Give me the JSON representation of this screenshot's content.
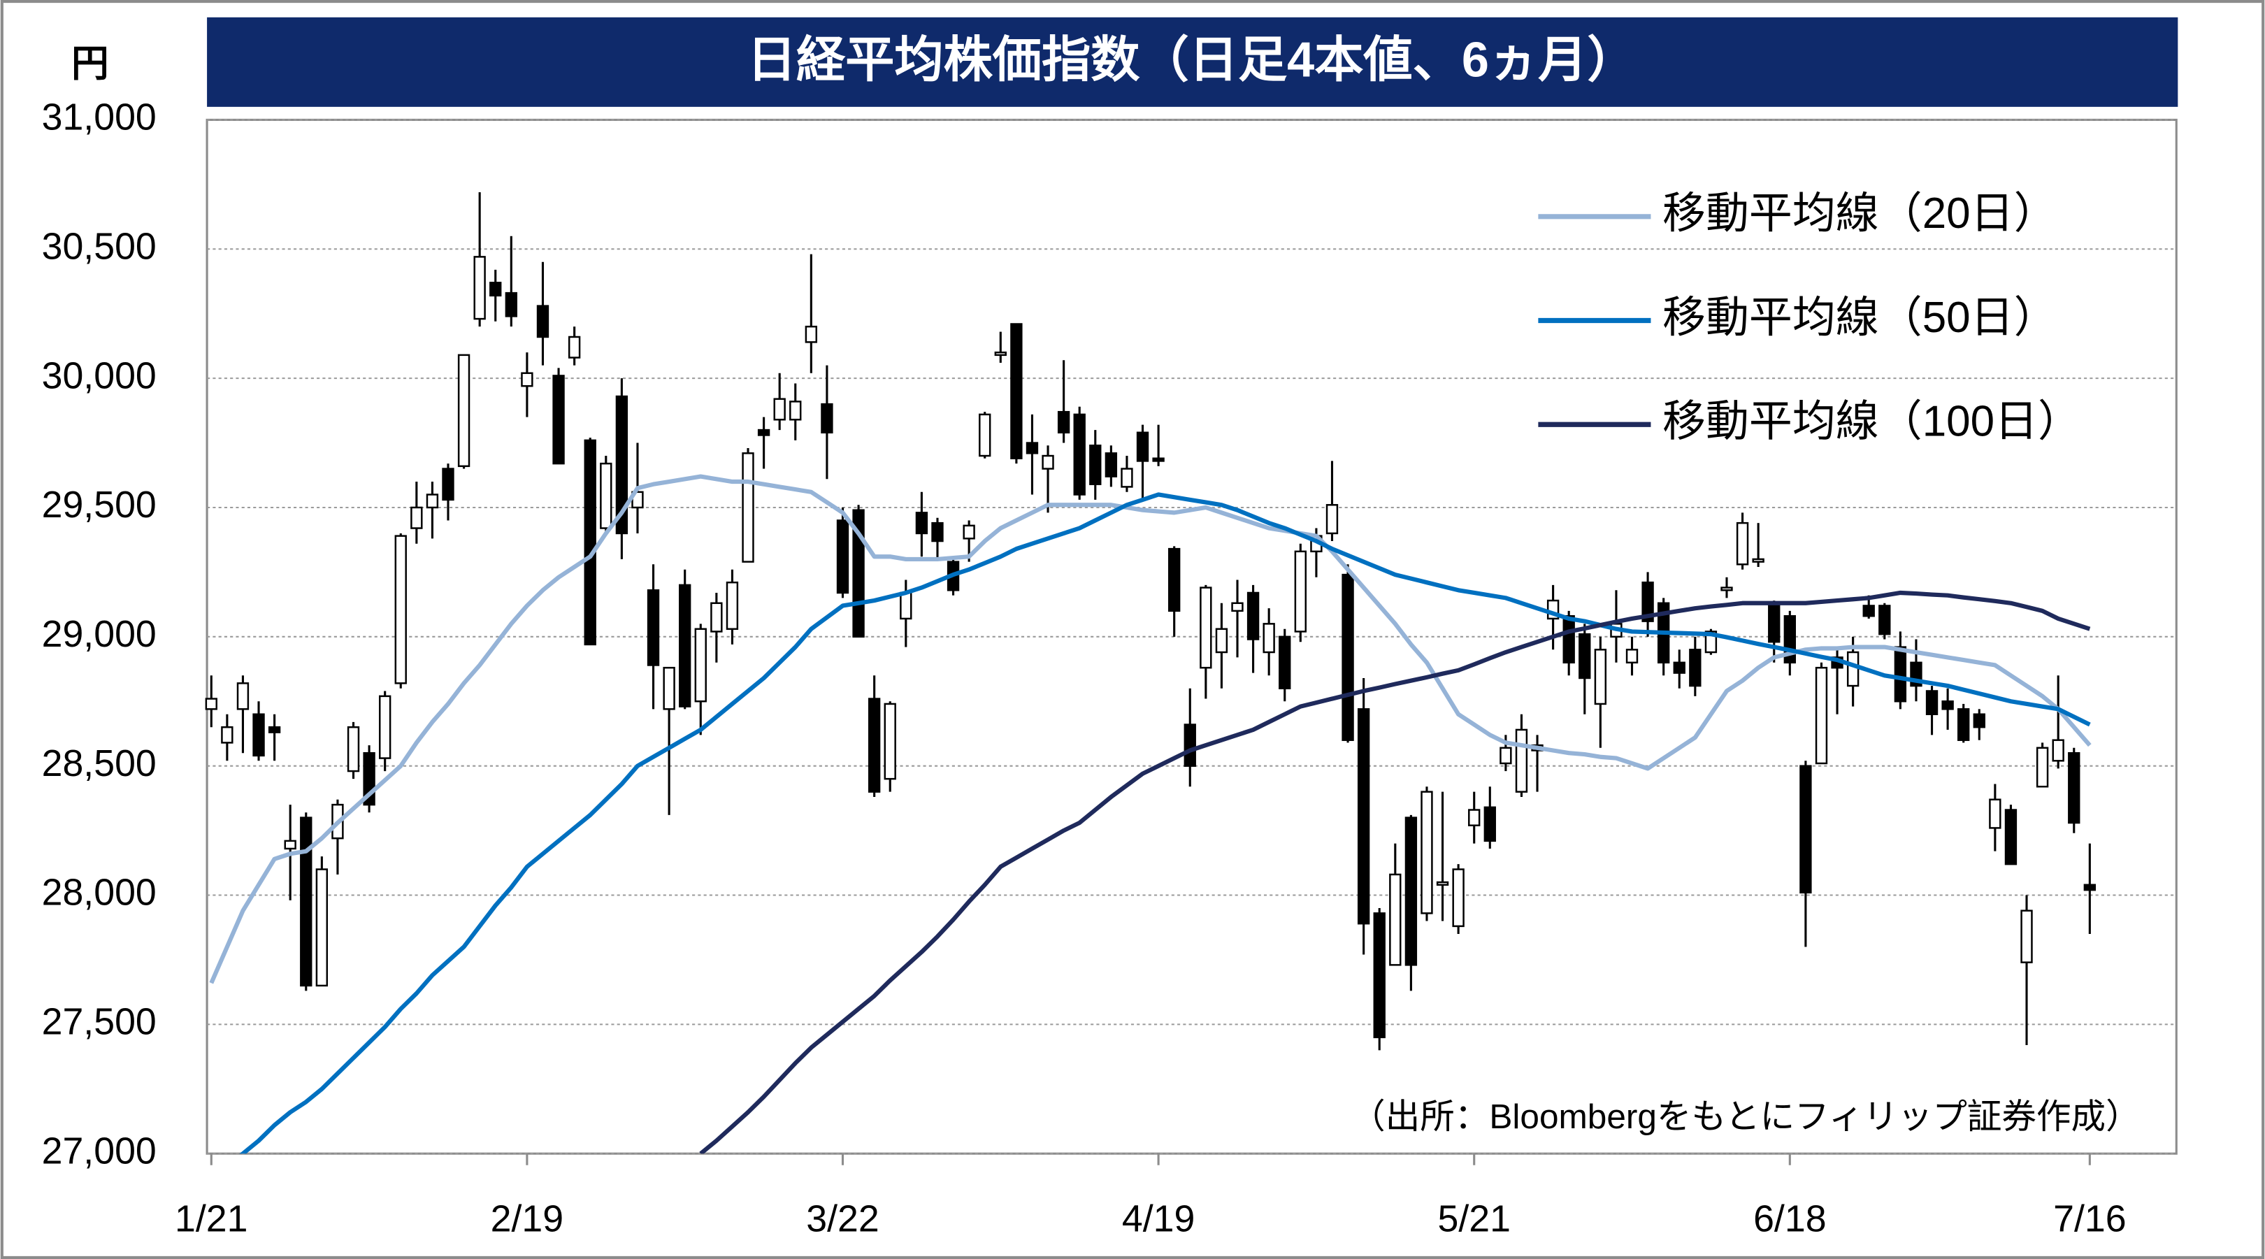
{
  "chart_data": {
    "type": "candlestick",
    "title": "日経平均株価指数（日足4本値、6ヵ月）",
    "y_unit": "円",
    "source": "（出所：Bloombergをもとにフィリップ証券作成）",
    "categories": [
      "1/21",
      null,
      null,
      null,
      null,
      null,
      null,
      null,
      null,
      null,
      null,
      null,
      null,
      null,
      null,
      null,
      null,
      null,
      null,
      null,
      "2/19",
      null,
      null,
      null,
      null,
      null,
      null,
      null,
      null,
      null,
      null,
      null,
      null,
      null,
      null,
      null,
      null,
      null,
      null,
      null,
      "3/22",
      null,
      null,
      null,
      null,
      null,
      null,
      null,
      null,
      null,
      null,
      null,
      null,
      null,
      null,
      null,
      null,
      null,
      null,
      null,
      "4/19",
      null,
      null,
      null,
      null,
      null,
      null,
      null,
      null,
      null,
      null,
      null,
      null,
      null,
      null,
      null,
      null,
      null,
      null,
      null,
      "5/21",
      null,
      null,
      null,
      null,
      null,
      null,
      null,
      null,
      null,
      null,
      null,
      null,
      null,
      null,
      null,
      null,
      null,
      null,
      null,
      "6/18",
      null,
      null,
      null,
      null,
      null,
      null,
      null,
      null,
      null,
      null,
      null,
      null,
      null,
      null,
      null,
      null,
      null,
      null,
      "7/16"
    ],
    "open": [
      28720,
      28590,
      28720,
      28700,
      28650,
      28180,
      28300,
      27650,
      28220,
      28480,
      28550,
      28530,
      28820,
      29420,
      29500,
      29650,
      29660,
      30230,
      30370,
      30330,
      29970,
      30280,
      30010,
      30080,
      29760,
      29420,
      29930,
      29500,
      29180,
      28720,
      29200,
      28750,
      29020,
      29030,
      29290,
      29800,
      29840,
      29840,
      30140,
      29900,
      29450,
      29490,
      28760,
      28450,
      29070,
      29480,
      29440,
      29290,
      29380,
      29700,
      30090,
      30210,
      29750,
      29650,
      29870,
      29860,
      29740,
      29710,
      29580,
      29790,
      29690,
      29340,
      28660,
      28880,
      28940,
      29100,
      29170,
      28940,
      29000,
      29020,
      29330,
      29400,
      29240,
      28720,
      27930,
      27730,
      28300,
      27930,
      28040,
      27880,
      28270,
      28340,
      28510,
      28400,
      28560,
      29070,
      29080,
      29010,
      28740,
      29000,
      28900,
      29210,
      29130,
      28900,
      28950,
      28940,
      29180,
      29280,
      29290,
      29120,
      29080,
      28500,
      28510,
      28920,
      28810,
      29120,
      29120,
      28960,
      28900,
      28790,
      28750,
      28720,
      28700,
      28260,
      28330,
      27740,
      28420,
      28520,
      28550,
      28040
    ],
    "high": [
      28850,
      28700,
      28850,
      28750,
      28700,
      28350,
      28320,
      28150,
      28370,
      28670,
      28580,
      28790,
      29400,
      29600,
      29600,
      29670,
      30090,
      30720,
      30420,
      30550,
      30100,
      30450,
      30040,
      30200,
      29770,
      29700,
      30000,
      29750,
      29280,
      28880,
      29260,
      29050,
      29170,
      29260,
      29730,
      29850,
      30020,
      29980,
      30480,
      30050,
      29500,
      29510,
      28850,
      28750,
      29220,
      29560,
      29460,
      29310,
      29450,
      29870,
      30180,
      30210,
      29860,
      29740,
      30070,
      29890,
      29800,
      29740,
      29700,
      29820,
      29820,
      29350,
      28800,
      29200,
      29130,
      29220,
      29200,
      29110,
      29030,
      29360,
      29420,
      29680,
      29280,
      28840,
      27950,
      28200,
      28310,
      28420,
      28400,
      28120,
      28400,
      28420,
      28620,
      28700,
      28620,
      29200,
      29100,
      29050,
      29000,
      29180,
      29000,
      29250,
      29150,
      28950,
      29000,
      29030,
      29230,
      29480,
      29440,
      29140,
      29100,
      28520,
      28900,
      28950,
      29000,
      29160,
      29130,
      29020,
      28990,
      28810,
      28800,
      28740,
      28720,
      28430,
      28350,
      28000,
      28590,
      28850,
      28570,
      28200
    ],
    "low": [
      28650,
      28520,
      28550,
      28520,
      28520,
      27980,
      27630,
      27650,
      28080,
      28450,
      28320,
      28480,
      28800,
      29360,
      29380,
      29450,
      29650,
      30200,
      30220,
      30200,
      29850,
      30050,
      29670,
      30050,
      28970,
      29400,
      29300,
      29400,
      28720,
      28310,
      28720,
      28620,
      28900,
      28970,
      29290,
      29650,
      29800,
      29760,
      30020,
      29610,
      29150,
      29000,
      28380,
      28400,
      28960,
      29310,
      29300,
      29160,
      29290,
      29690,
      30060,
      29670,
      29550,
      29480,
      29750,
      29530,
      29530,
      29580,
      29560,
      29530,
      29660,
      29000,
      28420,
      28760,
      28800,
      28920,
      28860,
      28850,
      28750,
      28980,
      29230,
      29370,
      28590,
      27770,
      27400,
      27730,
      27630,
      27900,
      27900,
      27850,
      28200,
      28180,
      28480,
      28380,
      28400,
      28950,
      28850,
      28700,
      28570,
      28900,
      28850,
      29000,
      28850,
      28800,
      28770,
      28930,
      29150,
      29260,
      29270,
      28900,
      28850,
      27800,
      28510,
      28700,
      28730,
      29070,
      28990,
      28720,
      28750,
      28620,
      28640,
      28590,
      28600,
      28170,
      28120,
      27420,
      28420,
      28490,
      28240,
      27850
    ],
    "close": [
      28760,
      28650,
      28820,
      28540,
      28630,
      28210,
      27650,
      28100,
      28350,
      28650,
      28350,
      28770,
      29390,
      29500,
      29550,
      29530,
      30090,
      30470,
      30320,
      30240,
      30020,
      30160,
      29670,
      30160,
      28970,
      29670,
      29400,
      29560,
      28890,
      28880,
      28730,
      29030,
      29130,
      29210,
      29710,
      29780,
      29920,
      29910,
      30200,
      29790,
      29170,
      29000,
      28400,
      28740,
      29170,
      29400,
      29370,
      29180,
      29430,
      29860,
      30100,
      29690,
      29710,
      29700,
      29790,
      29550,
      29590,
      29620,
      29650,
      29680,
      29680,
      29100,
      28500,
      29190,
      29030,
      29130,
      28990,
      29050,
      28800,
      29330,
      29390,
      29510,
      28600,
      27890,
      27450,
      28080,
      27730,
      28400,
      28050,
      28100,
      28330,
      28210,
      28570,
      28640,
      28580,
      29140,
      28900,
      28840,
      28950,
      29050,
      28950,
      29060,
      28900,
      28860,
      28810,
      29020,
      29190,
      29440,
      29300,
      28980,
      28900,
      28010,
      28880,
      28880,
      28940,
      29080,
      29010,
      28750,
      28810,
      28700,
      28720,
      28600,
      28650,
      28370,
      28120,
      27940,
      28570,
      28600,
      28280,
      28020
    ],
    "up_color": "#ffffff",
    "down_color": "#000000",
    "series": [
      {
        "name": "移動平均線（20日）",
        "color": "#95b3d7",
        "values": [
          27660,
          27800,
          27940,
          28040,
          28140,
          28160,
          28170,
          28220,
          28280,
          28335,
          28390,
          28445,
          28500,
          28590,
          28670,
          28740,
          28820,
          28890,
          28970,
          29050,
          29120,
          29180,
          29230,
          29270,
          29310,
          29400,
          29480,
          29575,
          29590,
          29600,
          29610,
          29620,
          29610,
          29600,
          29600,
          29590,
          29580,
          29570,
          29560,
          29520,
          29480,
          29400,
          29310,
          29310,
          29300,
          29300,
          29300,
          29305,
          29310,
          29370,
          29420,
          29450,
          29480,
          29510,
          29510,
          29510,
          29510,
          29510,
          29500,
          29490,
          29485,
          29480,
          29490,
          29500,
          29480,
          29460,
          29440,
          29420,
          29410,
          29400,
          29390,
          29330,
          29260,
          29190,
          29120,
          29050,
          28970,
          28900,
          28800,
          28700,
          28660,
          28620,
          28590,
          28580,
          28570,
          28560,
          28550,
          28545,
          28535,
          28530,
          28510,
          28490,
          28530,
          28570,
          28610,
          28700,
          28790,
          28830,
          28880,
          28920,
          28935,
          28950,
          28955,
          28955,
          28960,
          28960,
          28960,
          28950,
          28940,
          28930,
          28920,
          28910,
          28900,
          28890,
          28850,
          28810,
          28770,
          28720,
          28650,
          28580
        ]
      },
      {
        "name": "移動平均線（50日）",
        "color": "#0070c0",
        "values": [
          26900,
          26950,
          27000,
          27050,
          27110,
          27160,
          27200,
          27250,
          27310,
          27370,
          27430,
          27490,
          27560,
          27620,
          27690,
          27745,
          27800,
          27880,
          27960,
          28030,
          28110,
          28160,
          28210,
          28260,
          28310,
          28370,
          28430,
          28500,
          28535,
          28570,
          28605,
          28640,
          28690,
          28740,
          28790,
          28840,
          28900,
          28960,
          29030,
          29075,
          29120,
          29130,
          29140,
          29155,
          29170,
          29190,
          29215,
          29240,
          29260,
          29285,
          29310,
          29340,
          29360,
          29380,
          29400,
          29420,
          29450,
          29480,
          29510,
          29530,
          29550,
          29540,
          29530,
          29520,
          29510,
          29490,
          29465,
          29440,
          29420,
          29395,
          29370,
          29340,
          29315,
          29290,
          29265,
          29240,
          29225,
          29210,
          29195,
          29180,
          29170,
          29160,
          29150,
          29130,
          29110,
          29090,
          29070,
          29060,
          29045,
          29030,
          29020,
          29018,
          29016,
          29014,
          29012,
          29010,
          28998,
          28985,
          28972,
          28960,
          28948,
          28935,
          28922,
          28910,
          28890,
          28870,
          28850,
          28840,
          28830,
          28820,
          28810,
          28795,
          28780,
          28765,
          28750,
          28740,
          28730,
          28720,
          28690,
          28660
        ]
      },
      {
        "name": "移動平均線（100日）",
        "color": "#1f2a5c",
        "values": [
          null,
          null,
          null,
          null,
          null,
          null,
          null,
          null,
          null,
          null,
          null,
          null,
          null,
          null,
          null,
          null,
          null,
          null,
          null,
          null,
          null,
          null,
          null,
          null,
          null,
          null,
          null,
          null,
          null,
          null,
          null,
          27000,
          27050,
          27105,
          27160,
          27220,
          27285,
          27350,
          27410,
          27460,
          27510,
          27560,
          27610,
          27670,
          27725,
          27780,
          27840,
          27905,
          27975,
          28040,
          28110,
          28145,
          28180,
          28215,
          28250,
          28280,
          28330,
          28380,
          28425,
          28470,
          28500,
          28530,
          28560,
          28580,
          28600,
          28620,
          28640,
          28670,
          28700,
          28730,
          28745,
          28760,
          28775,
          28790,
          28803,
          28817,
          28830,
          28843,
          28857,
          28870,
          28893,
          28917,
          28940,
          28960,
          28980,
          29000,
          29020,
          29032,
          29045,
          29058,
          29070,
          29080,
          29090,
          29100,
          29110,
          29117,
          29123,
          29130,
          29130,
          29130,
          29130,
          29130,
          29135,
          29140,
          29145,
          29150,
          29160,
          29170,
          29167,
          29163,
          29160,
          29152,
          29145,
          29138,
          29130,
          29115,
          29100,
          29070,
          29050,
          29030
        ]
      }
    ],
    "ylim": [
      27000,
      31000
    ],
    "yticks": [
      {
        "value": 27000,
        "label": "27,000"
      },
      {
        "value": 27500,
        "label": "27,500"
      },
      {
        "value": 28000,
        "label": "28,000"
      },
      {
        "value": 28500,
        "label": "28,500"
      },
      {
        "value": 29000,
        "label": "29,000"
      },
      {
        "value": 29500,
        "label": "29,500"
      },
      {
        "value": 30000,
        "label": "30,000"
      },
      {
        "value": 30500,
        "label": "30,500"
      },
      {
        "value": 31000,
        "label": "31,000"
      }
    ],
    "grid": true,
    "legend": "upper right",
    "title_background": "#0f2a6b"
  }
}
